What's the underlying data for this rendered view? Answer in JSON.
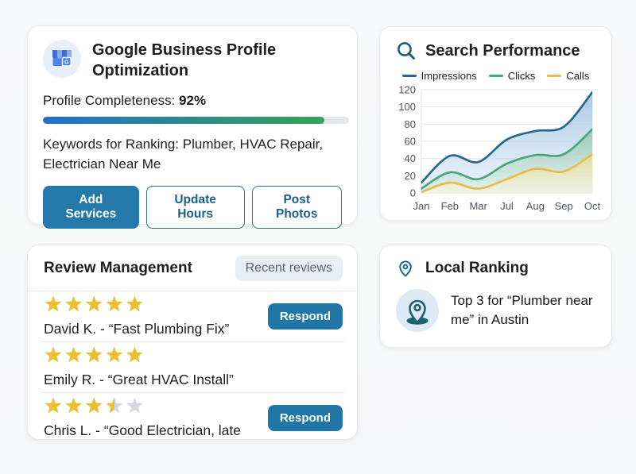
{
  "gbp_card": {
    "title": "Google Business Profile Optimization",
    "completeness_label": "Profile Completeness: ",
    "completeness_value": "92%",
    "progress_percent": 92,
    "keywords_text": "Keywords for Ranking: Plumber, HVAC Repair, Electrician Near Me",
    "buttons": [
      {
        "label": "Add Services",
        "style": "primary"
      },
      {
        "label": "Update Hours",
        "style": "outline"
      },
      {
        "label": "Post Photos",
        "style": "outline"
      }
    ]
  },
  "search_card": {
    "title": "Search Performance"
  },
  "chart_data": {
    "type": "area",
    "title": "Search Performance",
    "categories": [
      "Jan",
      "Feb",
      "Mar",
      "Jul",
      "Aug",
      "Sep",
      "Oct"
    ],
    "series": [
      {
        "name": "Impressions",
        "color": "#27678f",
        "fill_top": "#8fb8dc",
        "fill_bottom": "#dcebf6",
        "values": [
          12,
          43,
          36,
          62,
          72,
          77,
          117
        ]
      },
      {
        "name": "Clicks",
        "color": "#4ba57a",
        "fill_top": "#8cc3a8",
        "fill_bottom": "#ddefe3",
        "values": [
          5,
          24,
          16,
          34,
          44,
          45,
          74
        ]
      },
      {
        "name": "Calls",
        "color": "#e6bc4d",
        "fill_top": "#eeda8e",
        "fill_bottom": "#f9f5e0",
        "values": [
          1,
          12,
          5,
          16,
          28,
          25,
          45
        ]
      }
    ],
    "ylim": [
      0,
      120
    ],
    "yticks": [
      0,
      20,
      40,
      60,
      80,
      100,
      120
    ],
    "grid": true,
    "legend_position": "top"
  },
  "reviews_card": {
    "title": "Review Management",
    "badge": "Recent reviews",
    "respond_label": "Respond",
    "reviews": [
      {
        "rating": 5,
        "text": "David K. - “Fast Plumbing Fix”",
        "respond": true
      },
      {
        "rating": 5,
        "text": "Emily R. - “Great HVAC Install”",
        "respond": false
      },
      {
        "rating": 3.5,
        "text": "Chris L. - “Good Electrician, late",
        "respond": true
      }
    ]
  },
  "ranking_card": {
    "title": "Local Ranking",
    "text": "Top 3 for “Plumber near me” in Austin"
  },
  "colors": {
    "star_gold": "#ecbf30",
    "star_gray": "#d5d8dc",
    "axis_label": "#4c5560",
    "gridline": "#e5e8ec",
    "plot_border": "#dee2e7",
    "accent_teal": "#2176a8",
    "pin_teal": "#1d6073"
  }
}
